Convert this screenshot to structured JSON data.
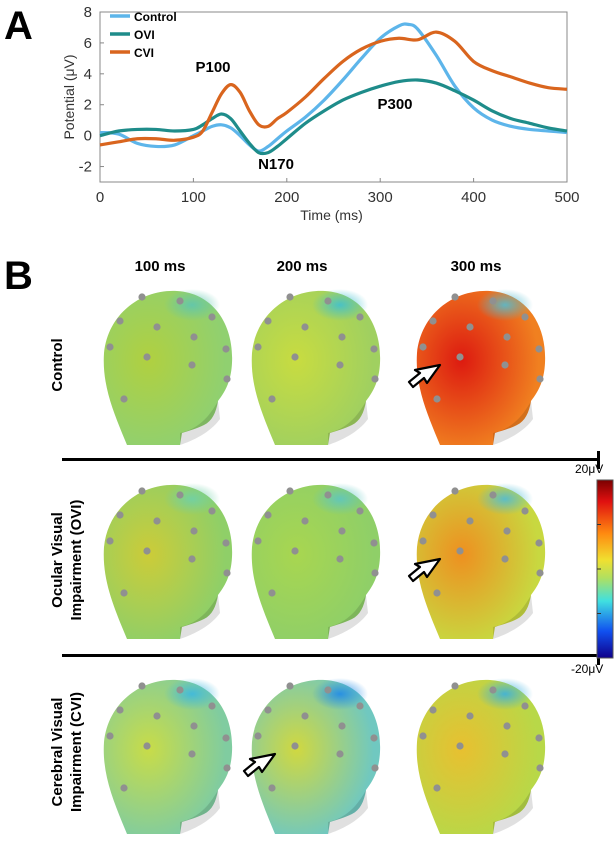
{
  "panel_a": {
    "letter": "A"
  },
  "panel_b": {
    "letter": "B"
  },
  "chart_data": {
    "type": "line",
    "xlabel": "Time (ms)",
    "ylabel": "Potential (μV)",
    "xlim": [
      0,
      500
    ],
    "ylim": [
      -3,
      8
    ],
    "xticks": [
      0,
      100,
      200,
      300,
      400,
      500
    ],
    "yticks": [
      -2,
      0,
      2,
      4,
      6,
      8
    ],
    "legend_position": "top-left",
    "grid": false,
    "series": [
      {
        "name": "Control",
        "color": "#5db5ea",
        "x": [
          0,
          20,
          40,
          60,
          80,
          100,
          110,
          120,
          130,
          140,
          150,
          160,
          170,
          180,
          190,
          200,
          220,
          240,
          260,
          280,
          300,
          320,
          330,
          340,
          360,
          380,
          400,
          420,
          440,
          460,
          480,
          500
        ],
        "y": [
          0.2,
          0.1,
          -0.5,
          -0.7,
          -0.6,
          0.0,
          0.3,
          0.6,
          0.7,
          0.5,
          0.0,
          -0.6,
          -1.0,
          -0.7,
          -0.2,
          0.3,
          1.2,
          2.3,
          3.6,
          5.0,
          6.3,
          7.1,
          7.2,
          6.9,
          5.2,
          3.2,
          1.8,
          1.0,
          0.6,
          0.4,
          0.3,
          0.2
        ]
      },
      {
        "name": "OVI",
        "color": "#1e8c8a",
        "x": [
          0,
          20,
          40,
          60,
          80,
          100,
          110,
          120,
          130,
          140,
          150,
          160,
          170,
          180,
          190,
          200,
          220,
          240,
          260,
          280,
          300,
          320,
          340,
          360,
          380,
          400,
          420,
          440,
          460,
          480,
          500
        ],
        "y": [
          0.0,
          0.3,
          0.4,
          0.4,
          0.3,
          0.4,
          0.7,
          1.1,
          1.4,
          1.1,
          0.3,
          -0.5,
          -1.1,
          -1.1,
          -0.7,
          -0.2,
          0.8,
          1.6,
          2.3,
          2.8,
          3.2,
          3.5,
          3.6,
          3.4,
          2.9,
          2.3,
          1.6,
          1.1,
          0.8,
          0.5,
          0.3
        ]
      },
      {
        "name": "CVI",
        "color": "#d9651e",
        "x": [
          0,
          20,
          40,
          60,
          80,
          100,
          110,
          120,
          130,
          140,
          150,
          160,
          170,
          180,
          190,
          200,
          220,
          240,
          260,
          280,
          300,
          320,
          340,
          360,
          380,
          400,
          420,
          440,
          460,
          480,
          500
        ],
        "y": [
          -0.6,
          -0.4,
          -0.2,
          -0.2,
          -0.3,
          -0.1,
          0.3,
          1.5,
          2.7,
          3.3,
          2.8,
          1.6,
          0.7,
          0.6,
          1.1,
          1.5,
          2.5,
          3.7,
          4.8,
          5.6,
          6.1,
          6.3,
          6.2,
          6.7,
          6.1,
          4.8,
          4.2,
          3.8,
          3.4,
          3.1,
          3.0
        ]
      }
    ],
    "annotations": [
      "P100",
      "N170",
      "P300"
    ]
  },
  "columns": [
    "100 ms",
    "200 ms",
    "300 ms"
  ],
  "rows": [
    {
      "label_lines": [
        "Control"
      ]
    },
    {
      "label_lines": [
        "Ocular Visual",
        "Impairment (OVI)"
      ]
    },
    {
      "label_lines": [
        "Cerebral Visual",
        "Impairment (CVI)"
      ]
    }
  ],
  "colorbar": {
    "max_label": "20μV",
    "min_label": "-20μV"
  },
  "heads": [
    [
      {
        "base": "#90d070",
        "blob": "#b0d040",
        "spot": "#5fc6b0",
        "level": 0.1
      },
      {
        "base": "#a0d060",
        "blob": "#c8dc40",
        "spot": "#40c0d0",
        "level": 0.15
      },
      {
        "base": "#f08020",
        "blob": "#dd1a10",
        "spot": "#55bcd0",
        "level": 0.75,
        "arrow": true
      }
    ],
    [
      {
        "base": "#8fcf68",
        "blob": "#cccc38",
        "spot": "#6fd0a8",
        "level": 0.1
      },
      {
        "base": "#8fcf68",
        "blob": "#a8d650",
        "spot": "#5ec6c0",
        "level": 0.12
      },
      {
        "base": "#c8d840",
        "blob": "#ee9020",
        "spot": "#50bcd6",
        "level": 0.4,
        "arrow": true
      }
    ],
    [
      {
        "base": "#80cca0",
        "blob": "#c8dc48",
        "spot": "#3cb8e0",
        "level": 0.05
      },
      {
        "base": "#70c8c0",
        "blob": "#d0d840",
        "spot": "#1f8ae8",
        "level": -0.3,
        "arrow": true
      },
      {
        "base": "#b8d848",
        "blob": "#e8c030",
        "spot": "#3ab0e0",
        "level": 0.2
      }
    ]
  ]
}
